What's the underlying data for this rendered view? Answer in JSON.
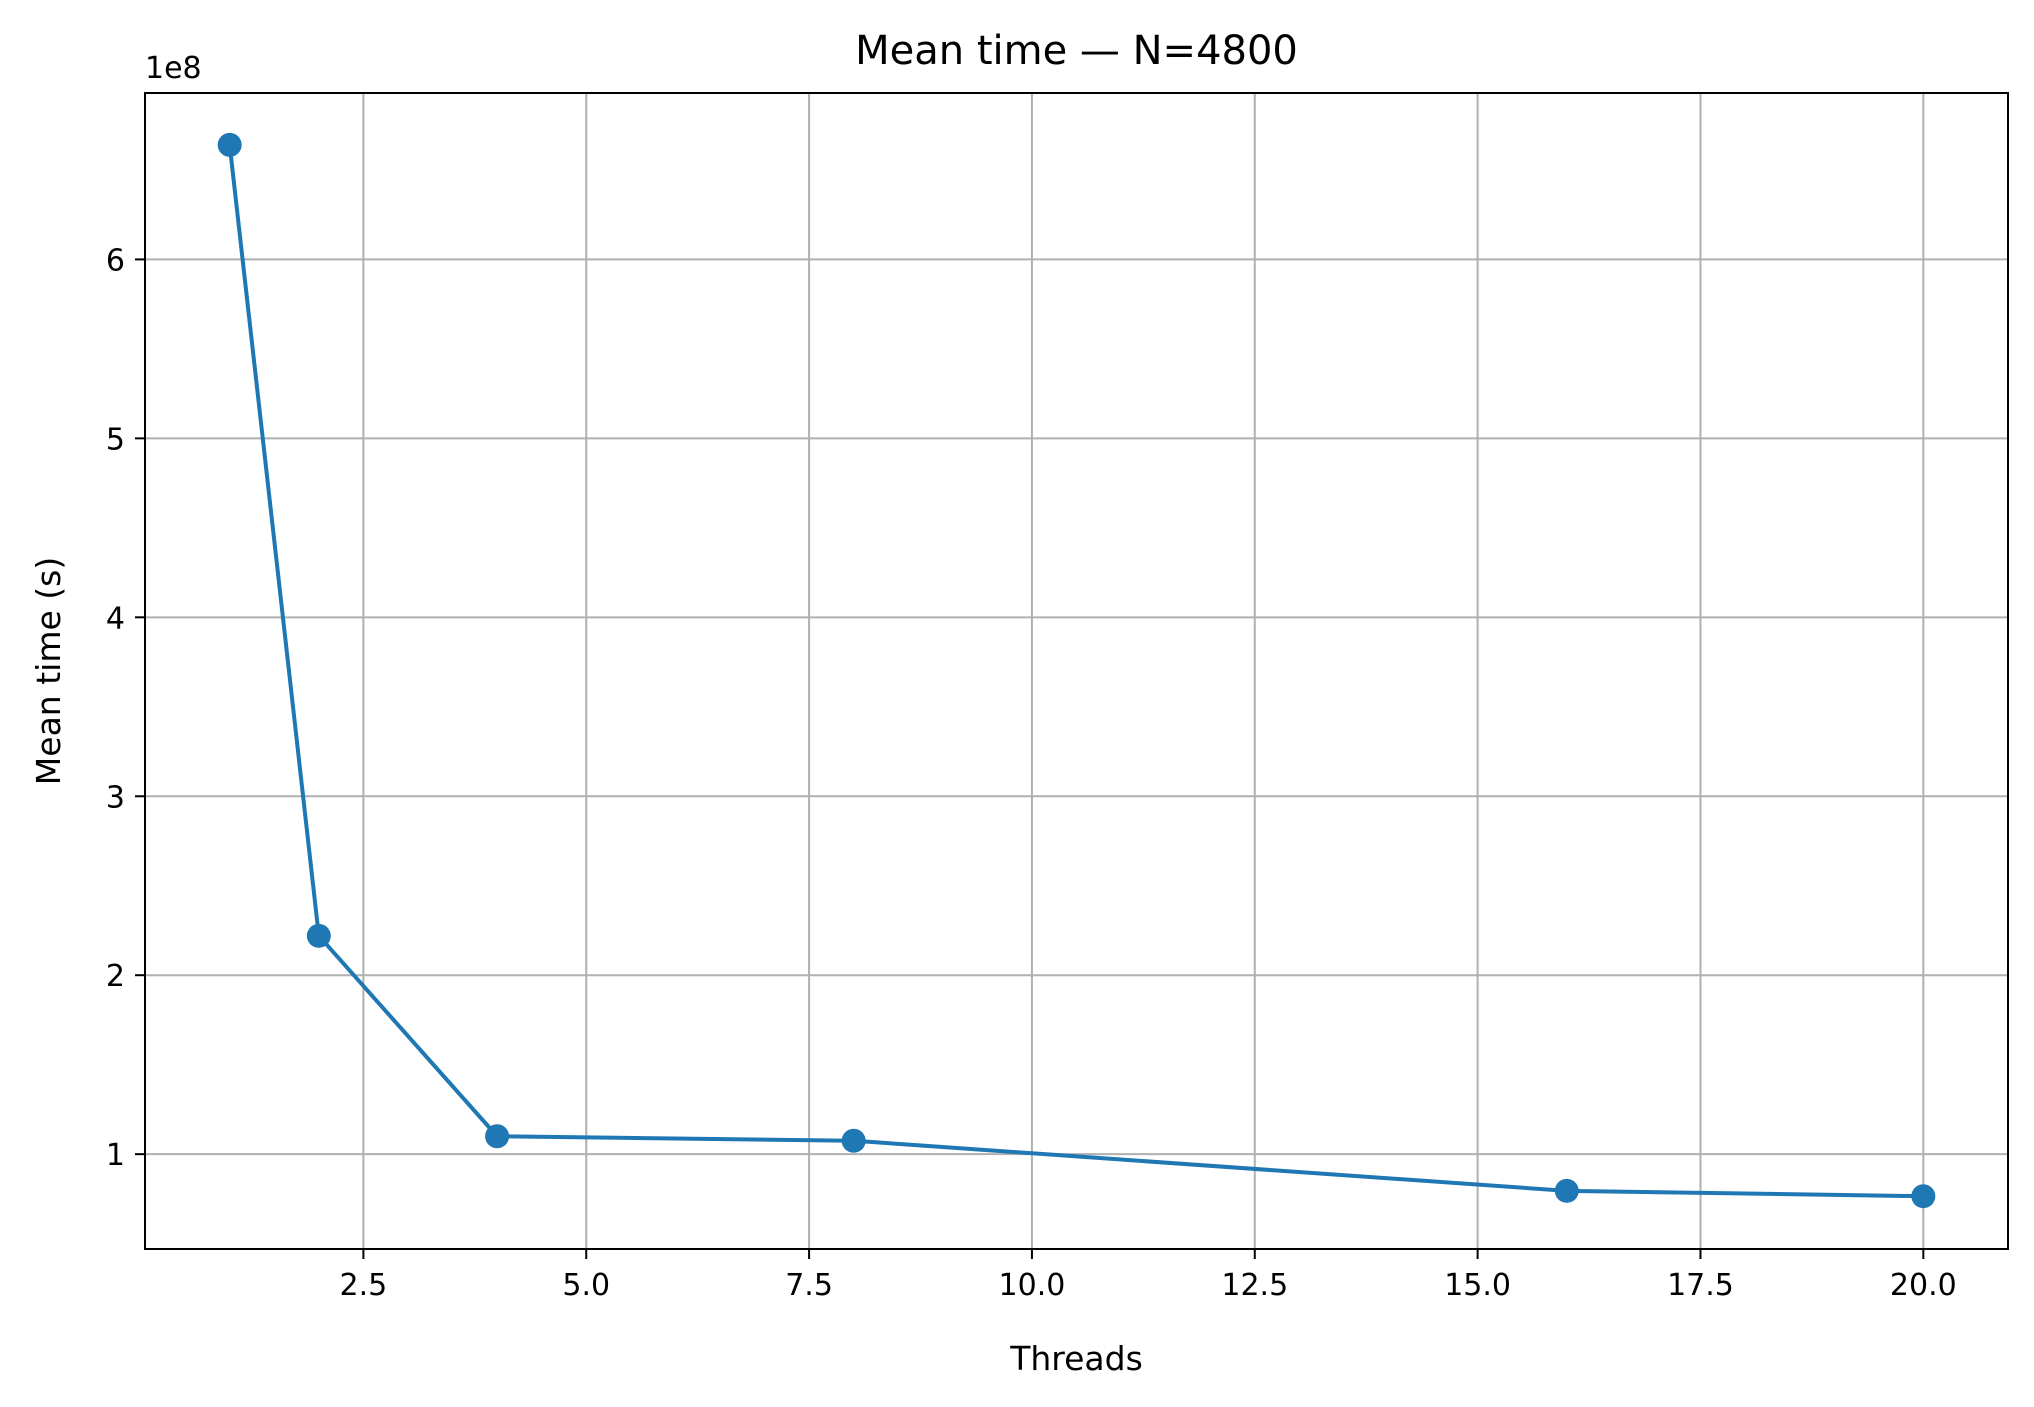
{
  "chart_data": {
    "type": "line",
    "title": "Mean time — N=4800",
    "xlabel": "Threads",
    "ylabel": "Mean time (s)",
    "y_offset_text": "1e8",
    "xlim": [
      0.05,
      20.95
    ],
    "ylim": [
      47000000,
      693000000
    ],
    "x_ticks": [
      2.5,
      5.0,
      7.5,
      10.0,
      12.5,
      15.0,
      17.5,
      20.0
    ],
    "x_tick_labels": [
      "2.5",
      "5.0",
      "7.5",
      "10.0",
      "12.5",
      "15.0",
      "17.5",
      "20.0"
    ],
    "y_ticks": [
      100000000,
      200000000,
      300000000,
      400000000,
      500000000,
      600000000
    ],
    "y_tick_labels": [
      "1",
      "2",
      "3",
      "4",
      "5",
      "6"
    ],
    "grid": true,
    "color": "#1f77b4",
    "series": [
      {
        "x": [
          1,
          2,
          4,
          8,
          16,
          20
        ],
        "y": [
          664000000,
          222000000,
          110000000,
          107500000,
          79500000,
          76500000
        ]
      }
    ]
  }
}
